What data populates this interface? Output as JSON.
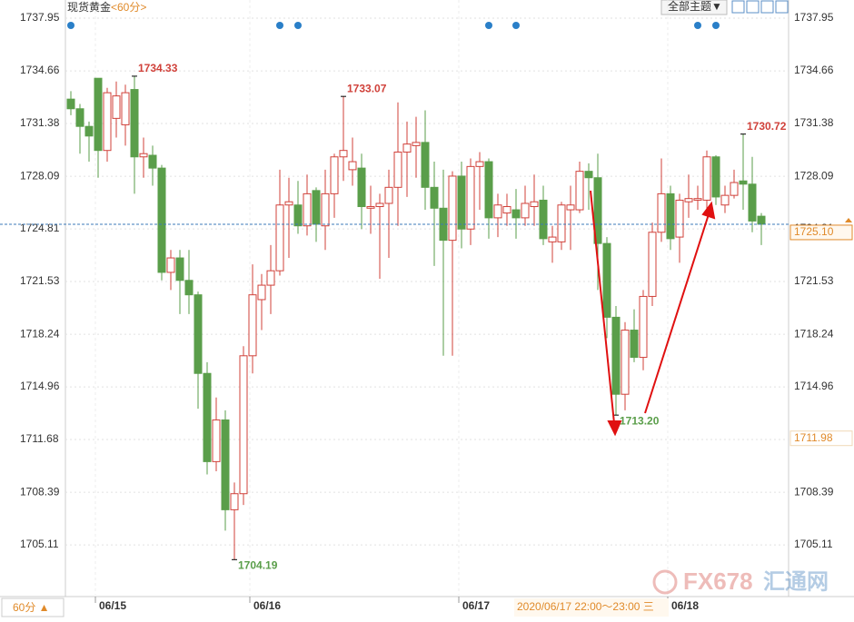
{
  "chart_data": {
    "type": "candlestick",
    "title": "现货黄金",
    "subtitle": "<60分>",
    "theme_button": "全部主题▼",
    "period_button": "60分 ▲",
    "cursor_time": "2020/06/17 22:00～23:00 三",
    "watermark": [
      "FX678",
      "汇通网"
    ],
    "up_color": "#d0413a",
    "down_color": "#5a9e4a",
    "grid": true,
    "categories": [
      null,
      null,
      null,
      "06/15",
      null,
      null,
      null,
      null,
      null,
      null,
      null,
      null,
      null,
      null,
      null,
      null,
      null,
      null,
      null,
      null,
      "06/16",
      null,
      null,
      null,
      null,
      null,
      null,
      null,
      null,
      null,
      null,
      null,
      null,
      null,
      null,
      null,
      null,
      null,
      null,
      null,
      null,
      null,
      null,
      "06/17",
      null,
      null,
      null,
      null,
      null,
      null,
      null,
      null,
      null,
      null,
      null,
      null,
      null,
      null,
      null,
      null,
      null,
      null,
      null,
      null,
      null,
      null,
      "06/18",
      null,
      null,
      null,
      null,
      null,
      null,
      null,
      null,
      null,
      null
    ],
    "open": [
      1732.9,
      1732.3,
      1731.2,
      1734.2,
      1729.7,
      1731.7,
      1731.3,
      1733.5,
      1729.3,
      1729.4,
      1728.6,
      1722.1,
      1723.0,
      1721.6,
      1720.7,
      1715.8,
      1710.3,
      1712.9,
      1707.3,
      1708.3,
      1716.9,
      1720.4,
      1721.3,
      1722.2,
      1726.3,
      1726.3,
      1725.0,
      1727.2,
      1725.0,
      1727.0,
      1729.3,
      1728.5,
      1728.6,
      1726.1,
      1726.2,
      1726.4,
      1727.4,
      1729.6,
      1730.0,
      1730.2,
      1727.4,
      1726.1,
      1724.1,
      1728.1,
      1724.8,
      1728.7,
      1729.0,
      1725.5,
      1725.8,
      1726.0,
      1725.5,
      1726.2,
      1726.6,
      1724.0,
      1724.0,
      1726.0,
      1726.0,
      1728.4,
      1728.0,
      1723.9,
      1719.3,
      1714.5,
      1718.5,
      1716.8,
      1720.6,
      1724.6,
      1727.0,
      1724.3,
      1726.5,
      1726.6,
      1726.6,
      1729.3,
      1726.3,
      1726.9,
      1727.8,
      1727.6,
      1725.6
    ],
    "close": [
      1732.3,
      1731.2,
      1730.6,
      1729.7,
      1733.3,
      1733.1,
      1733.3,
      1729.3,
      1729.5,
      1728.6,
      1722.1,
      1723.0,
      1721.6,
      1720.7,
      1715.8,
      1710.3,
      1712.9,
      1707.3,
      1708.3,
      1716.9,
      1720.7,
      1721.3,
      1722.2,
      1726.3,
      1726.5,
      1725.0,
      1727.0,
      1725.1,
      1727.0,
      1729.3,
      1729.7,
      1729.0,
      1726.2,
      1726.2,
      1726.4,
      1727.4,
      1729.6,
      1730.1,
      1730.2,
      1727.4,
      1726.1,
      1724.1,
      1728.1,
      1724.8,
      1728.7,
      1729.0,
      1725.5,
      1726.3,
      1726.2,
      1725.5,
      1726.4,
      1726.5,
      1724.2,
      1724.3,
      1726.3,
      1726.3,
      1728.4,
      1728.0,
      1723.9,
      1719.3,
      1714.5,
      1718.5,
      1716.8,
      1720.6,
      1724.6,
      1727.0,
      1724.2,
      1726.6,
      1726.7,
      1726.7,
      1729.3,
      1726.8,
      1726.9,
      1727.7,
      1727.6,
      1725.3,
      1725.1
    ],
    "high": [
      1733.4,
      1732.6,
      1731.5,
      1734.2,
      1733.6,
      1734.0,
      1733.8,
      1734.33,
      1730.5,
      1730.0,
      1728.8,
      1723.5,
      1723.5,
      1723.5,
      1720.9,
      1716.5,
      1714.3,
      1713.5,
      1709.0,
      1717.5,
      1722.6,
      1722.0,
      1723.8,
      1728.5,
      1728.0,
      1727.8,
      1728.2,
      1727.4,
      1728.5,
      1729.5,
      1733.07,
      1730.5,
      1729.5,
      1727.5,
      1727.0,
      1728.5,
      1732.7,
      1731.5,
      1731.8,
      1732.2,
      1729.0,
      1728.5,
      1728.4,
      1729.0,
      1729.2,
      1729.6,
      1729.2,
      1727.0,
      1727.0,
      1727.3,
      1727.5,
      1728.2,
      1727.5,
      1725.0,
      1726.5,
      1727.5,
      1729.0,
      1728.9,
      1729.5,
      1724.3,
      1720.0,
      1719.0,
      1719.8,
      1721.0,
      1725.2,
      1729.2,
      1727.5,
      1727.0,
      1728.2,
      1727.5,
      1729.7,
      1729.4,
      1727.5,
      1728.5,
      1730.72,
      1729.3,
      1725.8
    ],
    "low": [
      1731.9,
      1729.5,
      1729.0,
      1728.0,
      1729.0,
      1730.5,
      1730.0,
      1727.0,
      1728.0,
      1727.5,
      1721.6,
      1721.0,
      1719.5,
      1719.5,
      1713.6,
      1709.5,
      1709.7,
      1706.0,
      1704.19,
      1707.6,
      1715.8,
      1718.5,
      1719.5,
      1721.9,
      1723.0,
      1724.5,
      1724.4,
      1724.0,
      1723.5,
      1725.5,
      1727.8,
      1727.5,
      1724.8,
      1724.5,
      1721.7,
      1723.0,
      1725.0,
      1726.8,
      1728.0,
      1726.0,
      1722.5,
      1716.9,
      1716.9,
      1723.6,
      1723.8,
      1726.0,
      1724.2,
      1724.3,
      1725.0,
      1724.2,
      1725.0,
      1725.0,
      1723.8,
      1722.7,
      1723.5,
      1723.5,
      1725.8,
      1726.0,
      1721.0,
      1718.0,
      1713.2,
      1713.5,
      1716.5,
      1716.0,
      1720.0,
      1724.0,
      1723.5,
      1722.7,
      1725.5,
      1726.0,
      1726.0,
      1726.3,
      1725.8,
      1726.7,
      1726.0,
      1724.6,
      1723.8
    ],
    "ylim": [
      1702.0,
      1739.08
    ],
    "yticks": [
      1737.95,
      1734.66,
      1731.38,
      1728.09,
      1724.81,
      1721.53,
      1718.24,
      1714.96,
      1711.68,
      1708.39,
      1705.11
    ],
    "annotations": [
      {
        "text": "1734.33",
        "x": 7,
        "y": 1734.33,
        "kind": "high"
      },
      {
        "text": "1733.07",
        "x": 30,
        "y": 1733.07,
        "kind": "high"
      },
      {
        "text": "1704.19",
        "x": 18,
        "y": 1704.19,
        "kind": "low"
      },
      {
        "text": "1713.20",
        "x": 60,
        "y": 1713.2,
        "kind": "low"
      },
      {
        "text": "1730.72",
        "x": 74,
        "y": 1730.72,
        "kind": "high"
      }
    ],
    "price_markers": [
      {
        "value": 1725.1,
        "label": "1725.10",
        "style": "current"
      },
      {
        "value": 1711.98,
        "label": "1711.98",
        "style": "plain"
      }
    ]
  }
}
